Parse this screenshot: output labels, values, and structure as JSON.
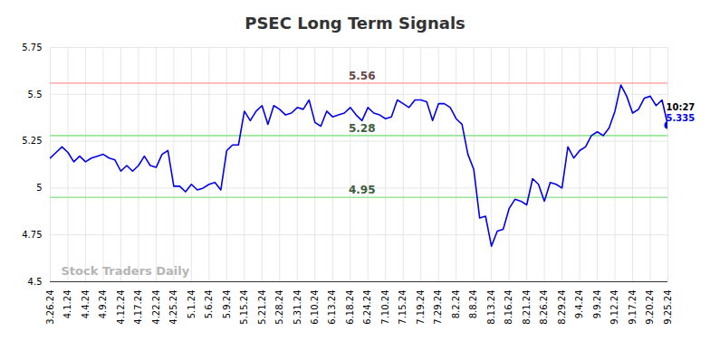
{
  "chart_data": {
    "type": "line",
    "title": "PSEC Long Term Signals",
    "color": "#0000ee",
    "grid": true,
    "watermark": "Stock Traders Daily",
    "annotation": "10:27",
    "ylim": [
      4.5,
      5.75
    ],
    "yticks": [
      4.5,
      4.75,
      5,
      5.25,
      5.5,
      5.75
    ],
    "reference_lines": [
      {
        "value": 5.56,
        "color": "#ffb3b3"
      },
      {
        "value": 5.28,
        "color": "#99e699"
      },
      {
        "value": 4.95,
        "color": "#99e699"
      }
    ],
    "categories": [
      "3.26.24",
      null,
      null,
      "4.1.24",
      null,
      null,
      "4.4.24",
      null,
      null,
      "4.9.24",
      null,
      null,
      "4.12.24",
      null,
      null,
      "4.17.24",
      null,
      null,
      "4.22.24",
      null,
      null,
      "4.25.24",
      null,
      null,
      "5.1.24",
      null,
      null,
      "5.6.24",
      null,
      null,
      "5.9.24",
      null,
      null,
      "5.15.24",
      null,
      null,
      "5.21.24",
      null,
      null,
      "5.28.24",
      null,
      null,
      "5.31.24",
      null,
      null,
      "6.10.24",
      null,
      null,
      "6.13.24",
      null,
      null,
      "6.18.24",
      null,
      null,
      "6.24.24",
      null,
      null,
      "7.10.24",
      null,
      null,
      "7.15.24",
      null,
      null,
      "7.19.24",
      null,
      null,
      "7.29.24",
      null,
      null,
      "8.2.24",
      null,
      null,
      "8.8.24",
      null,
      null,
      "8.13.24",
      null,
      null,
      "8.16.24",
      null,
      null,
      "8.21.24",
      null,
      null,
      "8.26.24",
      null,
      null,
      "8.29.24",
      null,
      null,
      "9.4.24",
      null,
      null,
      "9.9.24",
      null,
      null,
      "9.12.24",
      null,
      null,
      "9.17.24",
      null,
      null,
      "9.20.24",
      null,
      null,
      "9.25.24"
    ],
    "values": [
      5.16,
      5.19,
      5.22,
      5.19,
      5.14,
      5.17,
      5.14,
      5.16,
      5.17,
      5.18,
      5.16,
      5.15,
      5.09,
      5.12,
      5.09,
      5.12,
      5.17,
      5.12,
      5.11,
      5.18,
      5.2,
      5.01,
      5.01,
      4.98,
      5.02,
      4.99,
      5.0,
      5.02,
      5.03,
      4.99,
      5.2,
      5.23,
      5.23,
      5.41,
      5.36,
      5.41,
      5.44,
      5.34,
      5.44,
      5.42,
      5.39,
      5.4,
      5.43,
      5.42,
      5.47,
      5.35,
      5.33,
      5.41,
      5.38,
      5.39,
      5.4,
      5.43,
      5.39,
      5.36,
      5.43,
      5.4,
      5.39,
      5.37,
      5.38,
      5.47,
      5.45,
      5.43,
      5.47,
      5.47,
      5.46,
      5.36,
      5.45,
      5.45,
      5.43,
      5.37,
      5.34,
      5.18,
      5.1,
      4.84,
      4.85,
      4.69,
      4.77,
      4.78,
      4.89,
      4.94,
      4.93,
      4.91,
      5.05,
      5.02,
      4.93,
      5.03,
      5.02,
      5.0,
      5.22,
      5.16,
      5.2,
      5.22,
      5.28,
      5.3,
      5.28,
      5.32,
      5.41,
      5.55,
      5.49,
      5.4,
      5.42,
      5.48,
      5.49,
      5.44,
      5.47,
      5.335
    ]
  }
}
